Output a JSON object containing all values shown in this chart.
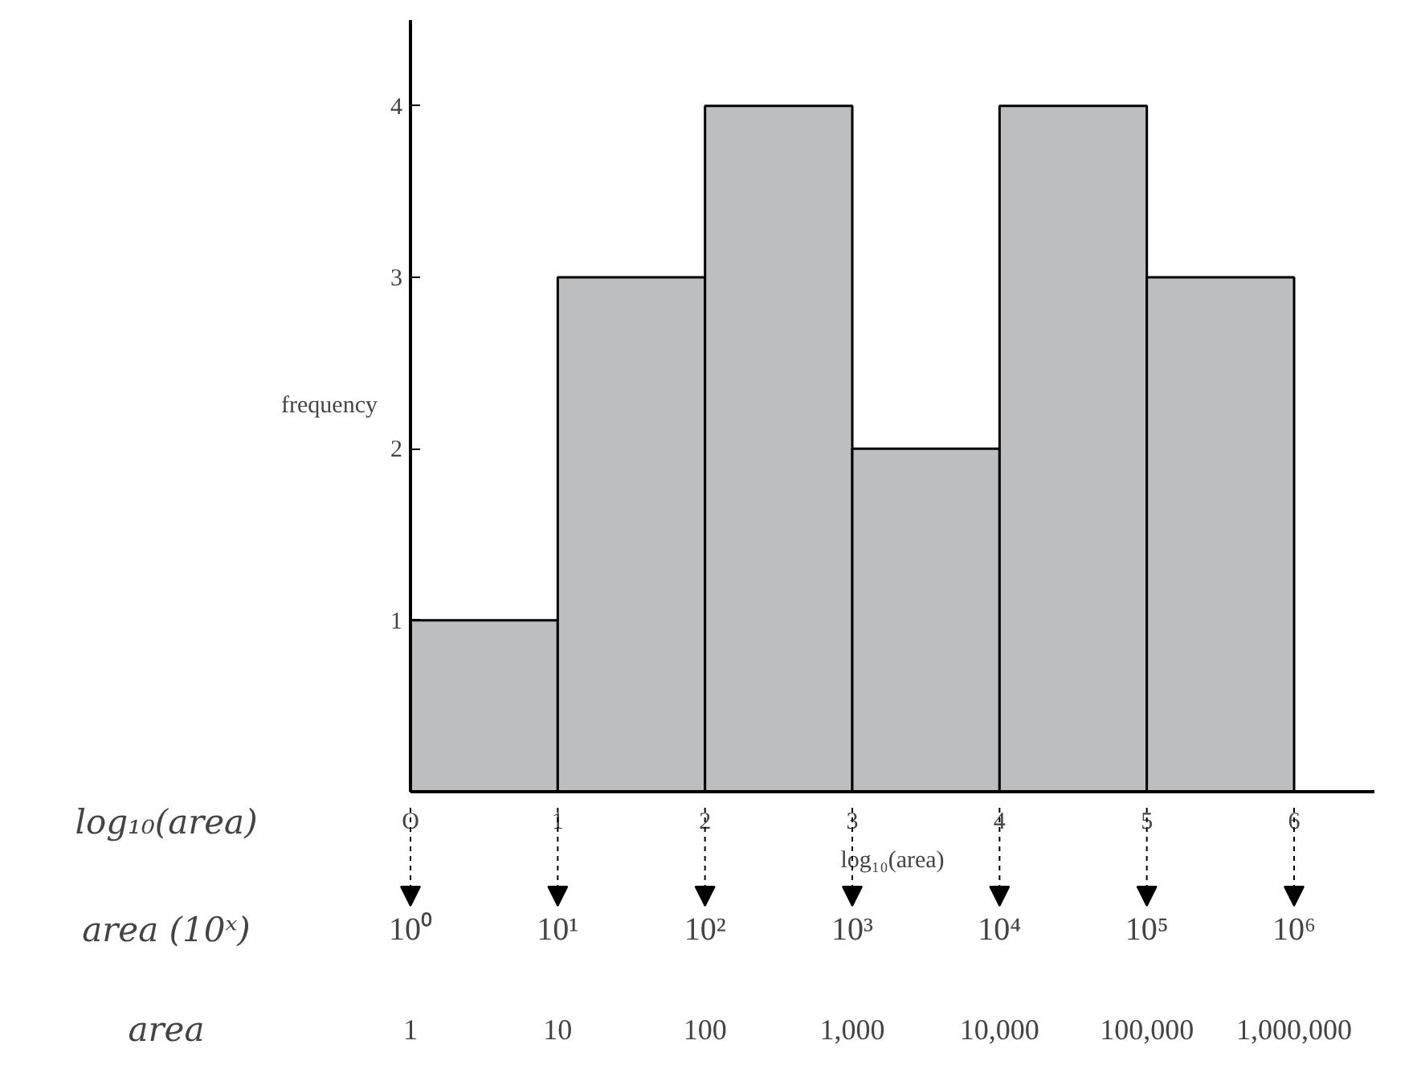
{
  "chart_data": {
    "type": "histogram",
    "xlabel": "log₁₀(area)",
    "ylabel": "frequency",
    "bins": [
      0,
      1,
      2,
      3,
      4,
      5,
      6
    ],
    "values": [
      1,
      3,
      4,
      2,
      4,
      3
    ],
    "color": "#bcbec0",
    "xlim": [
      0,
      6.55
    ],
    "ylim": [
      0,
      4.5
    ],
    "xticks": [
      {
        "value": 0,
        "label": "O"
      },
      1,
      2,
      3,
      4,
      5,
      6
    ],
    "yticks": [
      1,
      2,
      3,
      4
    ],
    "grid": false,
    "annotations": [
      "log₁₀(area)",
      "area (10ˣ)",
      "area",
      "10⁰",
      "10¹",
      "10²",
      "10³",
      "10⁴",
      "10⁵",
      "10⁶",
      "1",
      "10",
      "100",
      "1,000",
      "10,000",
      "100,000",
      "1,000,000"
    ]
  }
}
